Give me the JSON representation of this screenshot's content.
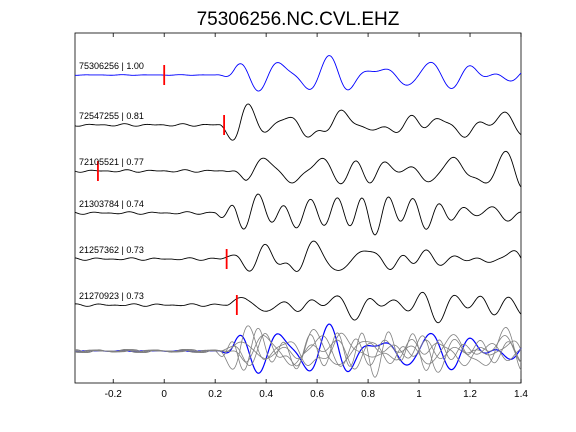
{
  "chart_data": {
    "type": "line",
    "title": "75306256.NC.CVL.EHZ",
    "xlabel": "",
    "ylabel": "",
    "xlim": [
      -0.35,
      1.4
    ],
    "x_ticks": [
      -0.2,
      0,
      0.2,
      0.4,
      0.6,
      0.8,
      1,
      1.2,
      1.4
    ],
    "x_tick_labels": [
      "-0.2",
      "0",
      "0.2",
      "0.4",
      "0.6",
      "0.8",
      "1",
      "1.2",
      "1.4"
    ],
    "grid": false,
    "traces": [
      {
        "label": "75306256 | 1.00",
        "color": "#0000ff",
        "pick_time": 0.0,
        "kind": "reference"
      },
      {
        "label": "72547255 | 0.81",
        "color": "#000000",
        "pick_time": 0.235,
        "kind": "event"
      },
      {
        "label": "72105521 | 0.77",
        "color": "#000000",
        "pick_time": -0.26,
        "kind": "event"
      },
      {
        "label": "21303784 | 0.74",
        "color": "#000000",
        "pick_time": null,
        "kind": "event"
      },
      {
        "label": "21257362 | 0.73",
        "color": "#000000",
        "pick_time": 0.245,
        "kind": "event"
      },
      {
        "label": "21270923 | 0.73",
        "color": "#000000",
        "pick_time": 0.285,
        "kind": "event"
      }
    ],
    "stack": {
      "color_traces": "#808080",
      "color_reference": "#0000ff"
    },
    "pick_color": "#ff0000"
  }
}
